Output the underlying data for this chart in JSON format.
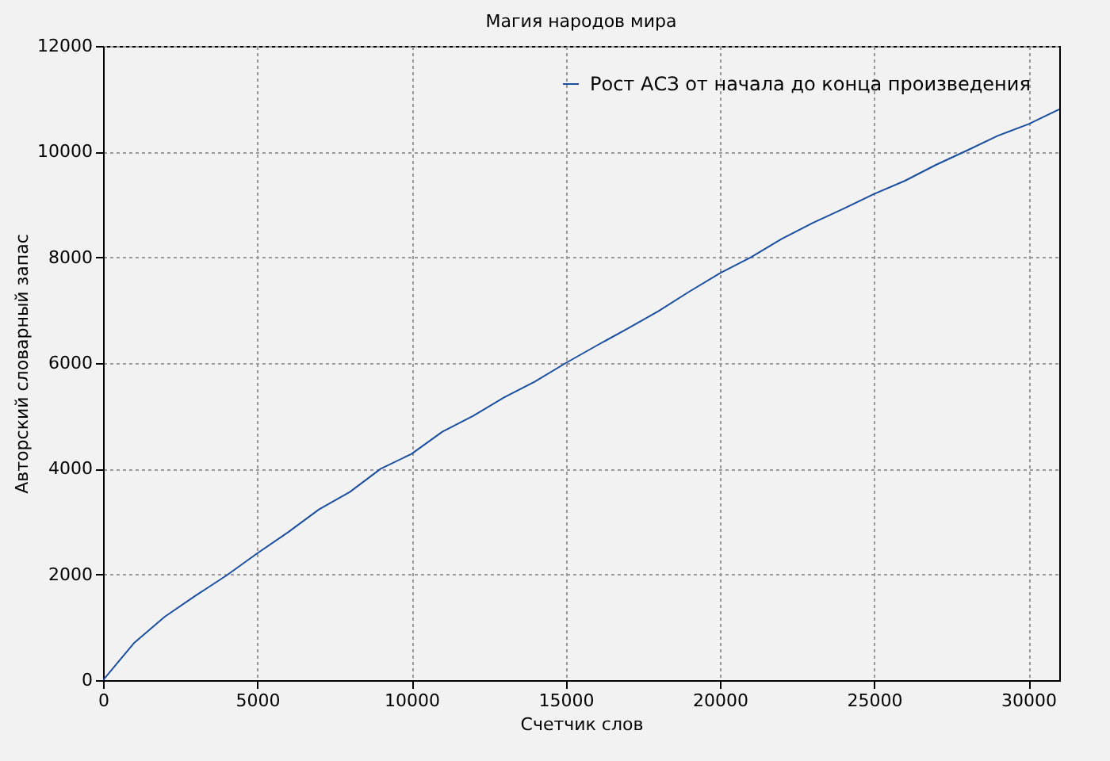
{
  "chart_data": {
    "type": "line",
    "title": "Магия народов мира",
    "xlabel": "Счетчик слов",
    "ylabel": "Авторский словарный запас",
    "x": [
      0,
      500,
      1000,
      2000,
      3000,
      4000,
      5000,
      6000,
      7000,
      8000,
      9000,
      10000,
      11000,
      12000,
      13000,
      14000,
      15000,
      16000,
      17000,
      18000,
      19000,
      20000,
      21000,
      22000,
      23000,
      24000,
      25000,
      26000,
      27000,
      28000,
      29000,
      30000,
      31000
    ],
    "series": [
      {
        "name": "Рост АСЗ от начала до конца произведения",
        "color": "#1a4fa0",
        "values": [
          0,
          350,
          700,
          1200,
          1600,
          1980,
          2400,
          2800,
          3230,
          3560,
          4000,
          4280,
          4700,
          5000,
          5350,
          5650,
          6000,
          6330,
          6650,
          6980,
          7350,
          7700,
          8000,
          8350,
          8650,
          8920,
          9200,
          9450,
          9750,
          10020,
          10300,
          10520,
          10800
        ]
      }
    ],
    "xlim": [
      0,
      31000
    ],
    "xticks": [
      0,
      5000,
      10000,
      15000,
      20000,
      25000,
      30000
    ],
    "ylim": [
      0,
      12000
    ],
    "yticks": [
      0,
      2000,
      4000,
      6000,
      8000,
      10000,
      12000
    ],
    "grid": true,
    "legend": "top right",
    "marker": "none",
    "line_style": "solid"
  }
}
